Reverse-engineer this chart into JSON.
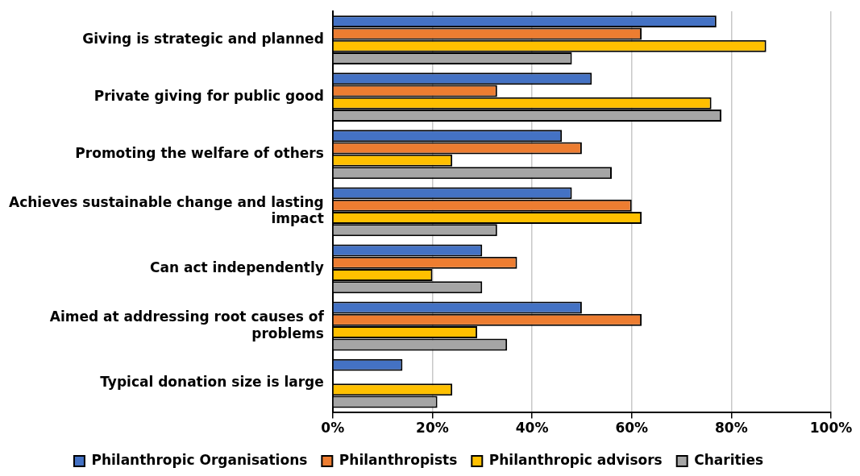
{
  "chart_data": {
    "type": "bar",
    "orientation": "horizontal",
    "categories": [
      "Giving is strategic and planned",
      "Private giving for public good",
      "Promoting the welfare of others",
      "Achieves sustainable change and lasting impact",
      "Can act independently",
      "Aimed at addressing root causes of problems",
      "Typical donation size is large"
    ],
    "series": [
      {
        "name": "Philanthropic Organisations",
        "color": "#4472c4",
        "values": [
          77,
          52,
          46,
          48,
          30,
          50,
          14
        ]
      },
      {
        "name": "Philanthropists",
        "color": "#ed7d31",
        "values": [
          62,
          33,
          50,
          60,
          37,
          62,
          0
        ]
      },
      {
        "name": "Philanthropic advisors",
        "color": "#ffc000",
        "values": [
          87,
          76,
          24,
          62,
          20,
          29,
          24
        ]
      },
      {
        "name": "Charities",
        "color": "#a5a5a5",
        "values": [
          48,
          78,
          56,
          33,
          30,
          35,
          21
        ]
      }
    ],
    "xlim": [
      0,
      100
    ],
    "xticks": [
      {
        "value": 0,
        "label": "0%"
      },
      {
        "value": 20,
        "label": "20%"
      },
      {
        "value": 40,
        "label": "40%"
      },
      {
        "value": 60,
        "label": "60%"
      },
      {
        "value": 80,
        "label": "80%"
      },
      {
        "value": 100,
        "label": "100%"
      }
    ],
    "grid": "x",
    "legend": "bottom"
  }
}
